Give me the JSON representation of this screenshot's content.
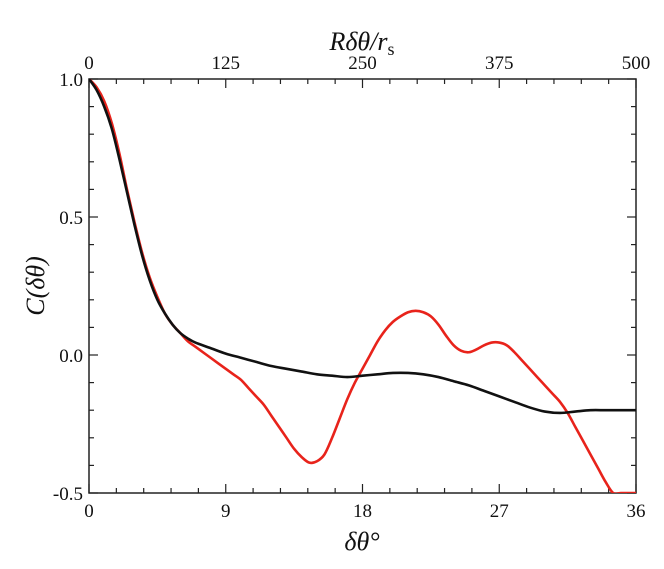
{
  "chart_data": {
    "type": "line",
    "title": "",
    "xlabel": "δθ°",
    "ylabel": "C(δθ)",
    "x2label": "Rδθ/r_s",
    "xlim": [
      0,
      36
    ],
    "ylim": [
      -0.5,
      1.0
    ],
    "x2lim": [
      0,
      500
    ],
    "grid": false,
    "legend": "none",
    "x_ticks": [
      0,
      9,
      18,
      27,
      36
    ],
    "x_tick_labels": [
      "0",
      "9",
      "18",
      "27",
      "36"
    ],
    "x2_ticks": [
      0,
      125,
      250,
      375,
      500
    ],
    "x2_tick_labels": [
      "0",
      "125",
      "250",
      "375",
      "500"
    ],
    "y_ticks": [
      1.0,
      0.5,
      0.0,
      -0.5
    ],
    "y_tick_labels": [
      "1.0",
      "0.5",
      "0.0",
      "-0.5"
    ],
    "series": [
      {
        "color": "#e8231b",
        "x": [
          0,
          0.5,
          1,
          1.5,
          2,
          2.5,
          3,
          3.5,
          4,
          4.5,
          5,
          5.5,
          6,
          6.5,
          7,
          7.5,
          8,
          8.5,
          9,
          9.5,
          10,
          10.5,
          11,
          11.5,
          12,
          12.5,
          13,
          13.5,
          14,
          14.5,
          15,
          15.5,
          16,
          16.5,
          17,
          17.5,
          18,
          18.5,
          19,
          19.5,
          20,
          20.5,
          21,
          21.5,
          22,
          22.5,
          23,
          23.5,
          24,
          24.5,
          25,
          25.5,
          26,
          26.5,
          27,
          27.5,
          28,
          28.5,
          29,
          29.5,
          30,
          30.5,
          31,
          31.5,
          32,
          32.5,
          33,
          33.5,
          34,
          34.5,
          35,
          35.5,
          36
        ],
        "y": [
          1.0,
          0.97,
          0.92,
          0.84,
          0.73,
          0.6,
          0.48,
          0.37,
          0.28,
          0.21,
          0.15,
          0.11,
          0.08,
          0.05,
          0.03,
          0.01,
          -0.01,
          -0.03,
          -0.05,
          -0.07,
          -0.09,
          -0.12,
          -0.15,
          -0.18,
          -0.22,
          -0.26,
          -0.3,
          -0.34,
          -0.37,
          -0.39,
          -0.385,
          -0.36,
          -0.3,
          -0.23,
          -0.16,
          -0.1,
          -0.05,
          0.0,
          0.05,
          0.09,
          0.12,
          0.14,
          0.155,
          0.16,
          0.155,
          0.14,
          0.11,
          0.07,
          0.035,
          0.015,
          0.01,
          0.02,
          0.035,
          0.045,
          0.045,
          0.035,
          0.01,
          -0.02,
          -0.05,
          -0.08,
          -0.11,
          -0.14,
          -0.17,
          -0.21,
          -0.26,
          -0.31,
          -0.36,
          -0.41,
          -0.46,
          -0.5,
          -0.5,
          -0.5,
          -0.5
        ]
      },
      {
        "color": "#111111",
        "x": [
          0,
          0.5,
          1,
          1.5,
          2,
          2.5,
          3,
          3.5,
          4,
          4.5,
          5,
          5.5,
          6,
          6.5,
          7,
          8,
          9,
          10,
          11,
          12,
          13,
          14,
          15,
          16,
          17,
          18,
          19,
          20,
          21,
          22,
          23,
          24,
          25,
          26,
          27,
          28,
          29,
          30,
          31,
          32,
          33,
          34,
          35,
          36
        ],
        "y": [
          1.0,
          0.96,
          0.9,
          0.82,
          0.71,
          0.59,
          0.47,
          0.36,
          0.27,
          0.2,
          0.15,
          0.11,
          0.08,
          0.06,
          0.045,
          0.025,
          0.005,
          -0.01,
          -0.025,
          -0.04,
          -0.05,
          -0.06,
          -0.07,
          -0.075,
          -0.08,
          -0.075,
          -0.07,
          -0.065,
          -0.065,
          -0.07,
          -0.08,
          -0.095,
          -0.11,
          -0.13,
          -0.15,
          -0.17,
          -0.19,
          -0.205,
          -0.21,
          -0.205,
          -0.2,
          -0.2,
          -0.2,
          -0.2
        ]
      }
    ]
  }
}
